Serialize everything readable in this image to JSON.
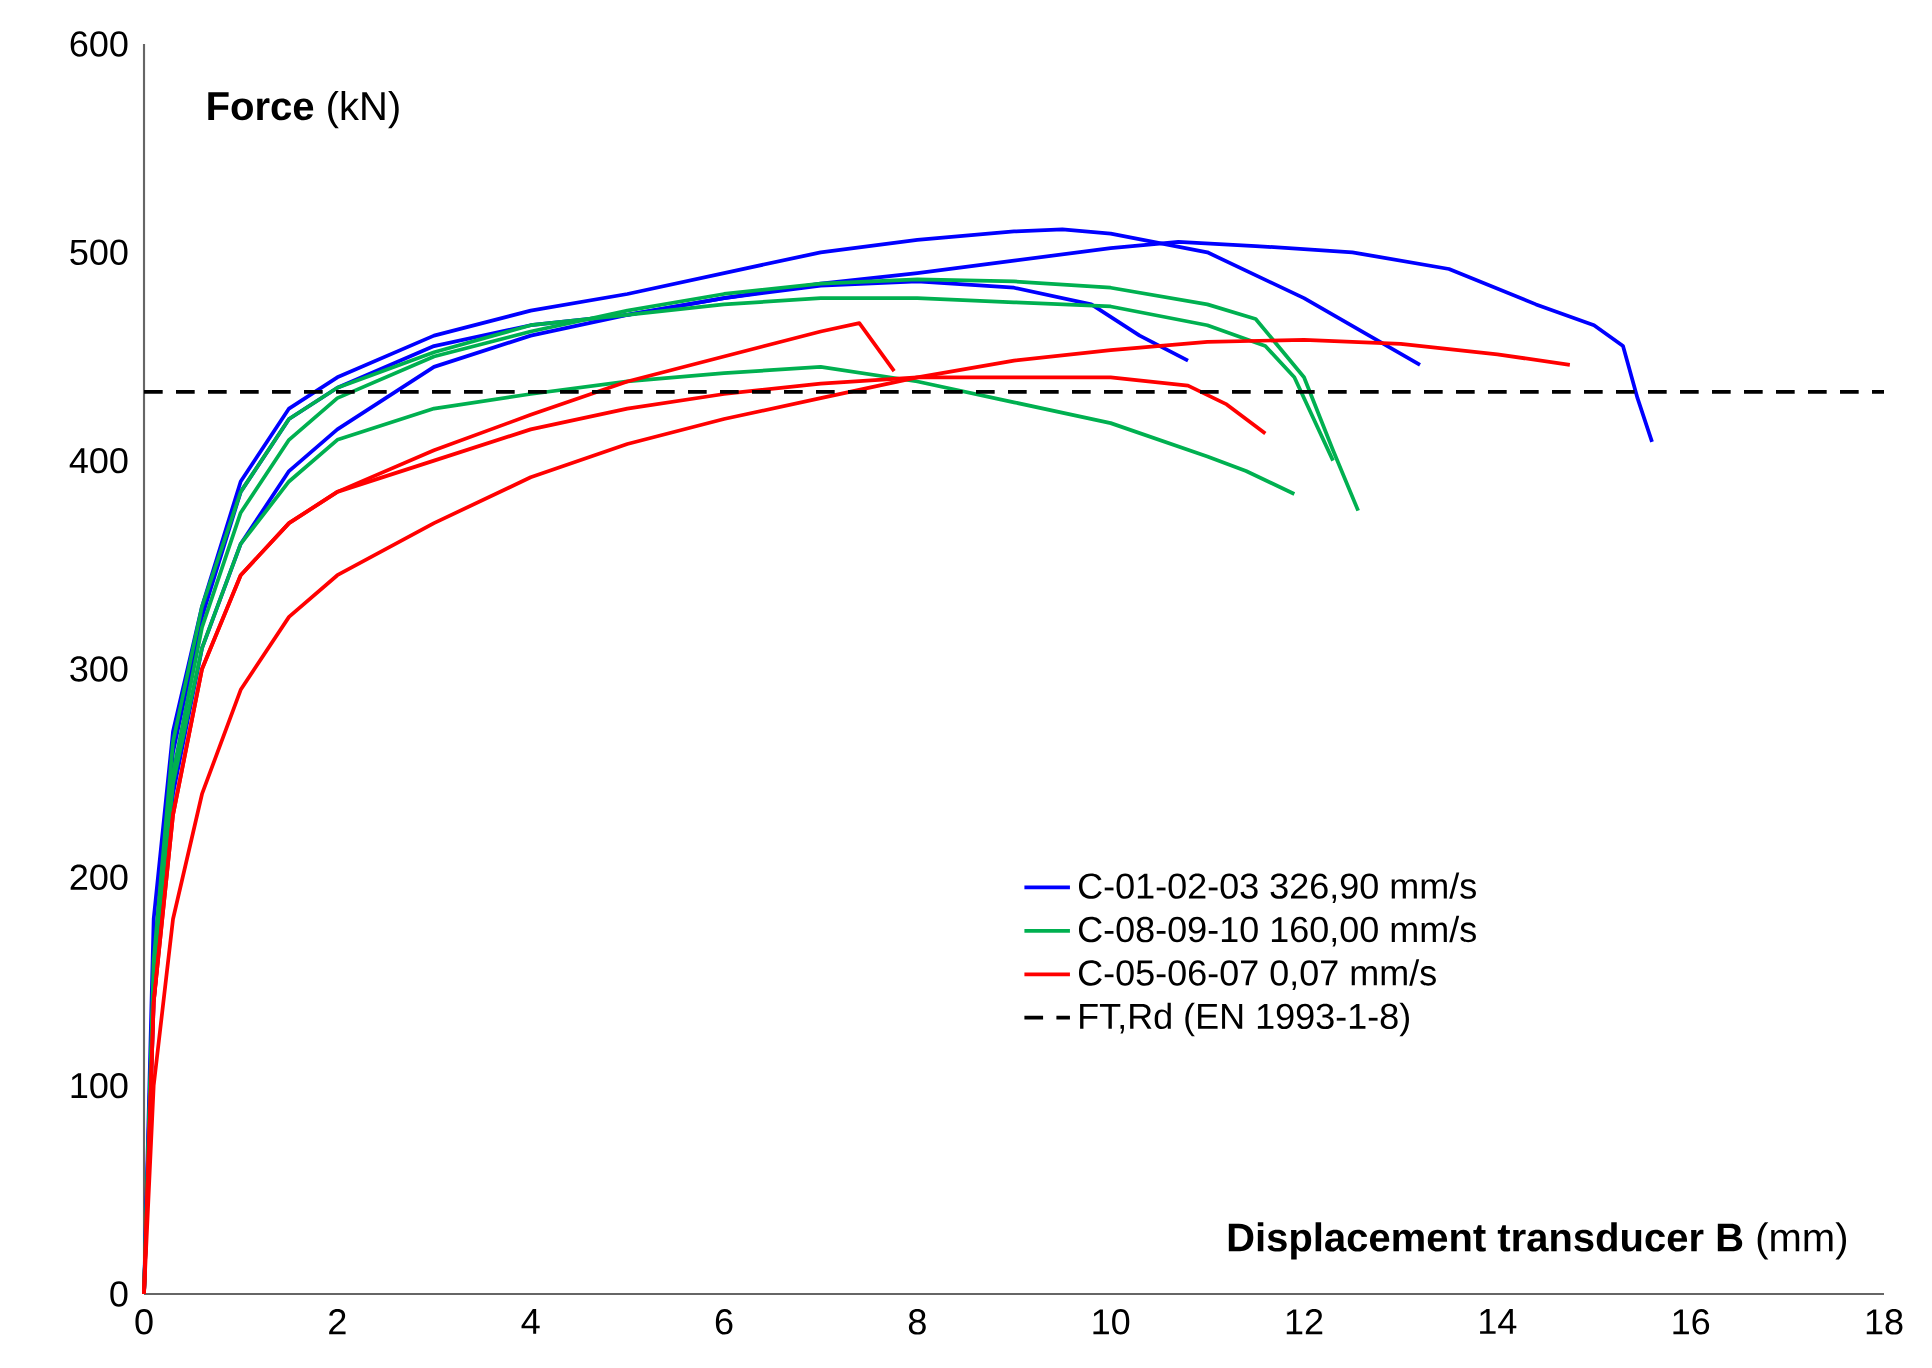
{
  "chart_data": {
    "type": "line",
    "ylabel": "**Force** (kN)",
    "xlabel": "**Displacement transducer B** (mm)",
    "xlim": [
      0,
      18
    ],
    "xticks": [
      0,
      2,
      4,
      6,
      8,
      10,
      12,
      14,
      16,
      18
    ],
    "ylim": [
      0,
      600
    ],
    "yticks": [
      0,
      100,
      200,
      300,
      400,
      500,
      600
    ],
    "grid": false,
    "legend": "right",
    "marker": "none",
    "line_style": "solid",
    "ref_lines": [
      {
        "axis": "y",
        "value": 433,
        "label": "FT,Rd (EN 1993-1-8)",
        "color": "#000000",
        "line_style": "dashed"
      }
    ],
    "series": [
      {
        "name": "C-01-02-03   326,90 mm/s",
        "color": "#0000ff",
        "x": [
          0,
          0.1,
          0.3,
          0.6,
          1,
          1.5,
          2,
          3,
          4,
          5,
          6,
          7,
          8,
          9,
          10,
          10.7,
          11.5,
          12.5,
          13.5,
          14.4,
          15.0,
          15.3,
          15.45,
          15.6
        ],
        "values": [
          0,
          140,
          240,
          310,
          360,
          395,
          415,
          445,
          460,
          470,
          478,
          485,
          490,
          496,
          502,
          505,
          503,
          500,
          492,
          475,
          465,
          455,
          430,
          409
        ]
      },
      {
        "color": "#0000ff",
        "x": [
          0,
          0.1,
          0.3,
          0.6,
          1,
          1.5,
          2,
          3,
          4,
          5,
          6,
          7,
          8,
          9,
          9.5,
          10,
          11,
          12,
          12.6,
          13.2
        ],
        "values": [
          0,
          180,
          270,
          330,
          390,
          425,
          440,
          460,
          472,
          480,
          490,
          500,
          506,
          510,
          511,
          509,
          500,
          478,
          462,
          446
        ]
      },
      {
        "color": "#0000ff",
        "x": [
          0,
          0.1,
          0.3,
          0.6,
          1,
          1.5,
          2,
          3,
          4,
          5,
          6,
          7,
          8,
          9,
          9.8,
          10.3,
          10.8
        ],
        "values": [
          0,
          160,
          260,
          325,
          385,
          420,
          435,
          455,
          465,
          470,
          478,
          484,
          486,
          483,
          475,
          460,
          448
        ]
      },
      {
        "name": "C-08-09-10   160,00 mm/s",
        "color": "#00b050",
        "x": [
          0,
          0.1,
          0.3,
          0.6,
          1,
          1.5,
          2,
          3,
          4,
          5,
          6,
          7,
          8,
          9,
          10,
          11,
          11.5,
          12,
          12.3,
          12.56
        ],
        "values": [
          0,
          150,
          250,
          320,
          375,
          410,
          430,
          450,
          462,
          472,
          480,
          485,
          487,
          486,
          483,
          475,
          468,
          440,
          405,
          376
        ]
      },
      {
        "color": "#00b050",
        "x": [
          0,
          0.1,
          0.3,
          0.6,
          1,
          1.5,
          2,
          3,
          4,
          5,
          6,
          7,
          8,
          9,
          10,
          11,
          11.6,
          11.9,
          12.1,
          12.3
        ],
        "values": [
          0,
          160,
          265,
          330,
          385,
          420,
          435,
          452,
          465,
          470,
          475,
          478,
          478,
          476,
          474,
          465,
          455,
          440,
          420,
          400
        ]
      },
      {
        "color": "#00b050",
        "x": [
          0,
          0.1,
          0.3,
          0.6,
          1,
          1.5,
          2,
          3,
          4,
          5,
          6,
          7,
          8,
          9,
          10,
          11,
          11.4,
          11.9
        ],
        "values": [
          0,
          150,
          245,
          310,
          360,
          390,
          410,
          425,
          432,
          438,
          442,
          445,
          438,
          428,
          418,
          402,
          395,
          384
        ]
      },
      {
        "name": "C-05-06-07   0,07 mm/s",
        "color": "#ff0000",
        "x": [
          0,
          0.1,
          0.3,
          0.6,
          1,
          1.5,
          2,
          3,
          4,
          5,
          6,
          7,
          7.4,
          7.76
        ],
        "values": [
          0,
          140,
          230,
          300,
          345,
          370,
          385,
          405,
          422,
          438,
          450,
          462,
          466,
          443
        ]
      },
      {
        "color": "#ff0000",
        "x": [
          0,
          0.1,
          0.3,
          0.6,
          1,
          1.5,
          2,
          3,
          4,
          5,
          6,
          7,
          8,
          9,
          10,
          10.8,
          11.2,
          11.6
        ],
        "values": [
          0,
          140,
          230,
          300,
          345,
          370,
          385,
          400,
          415,
          425,
          432,
          437,
          440,
          440,
          440,
          436,
          427,
          413
        ]
      },
      {
        "color": "#ff0000",
        "x": [
          0,
          0.1,
          0.3,
          0.6,
          1,
          1.5,
          2,
          3,
          4,
          5,
          6,
          7,
          8,
          9,
          10,
          11,
          12,
          13,
          14,
          14.75
        ],
        "values": [
          0,
          100,
          180,
          240,
          290,
          325,
          345,
          370,
          392,
          408,
          420,
          430,
          440,
          448,
          453,
          457,
          458,
          456,
          451,
          446
        ]
      }
    ]
  }
}
